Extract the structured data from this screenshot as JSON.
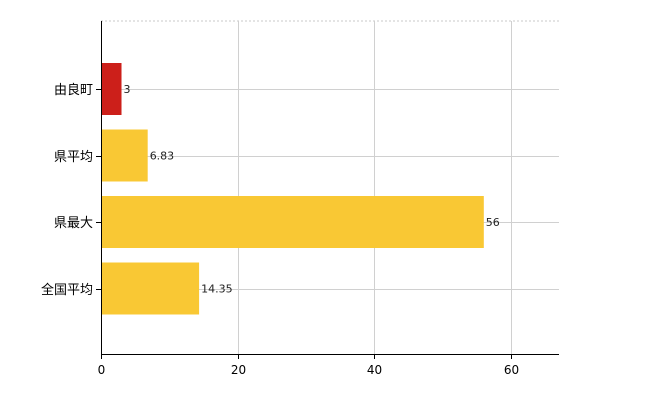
{
  "chart_data": {
    "type": "bar",
    "orientation": "horizontal",
    "categories": [
      "由良町",
      "県平均",
      "県最大",
      "全国平均"
    ],
    "values": [
      3,
      6.83,
      56,
      14.35
    ],
    "value_labels": [
      "3",
      "6.83",
      "56",
      "14.35"
    ],
    "bar_colors": [
      "#cc1f1a",
      "#f9c834",
      "#f9c834",
      "#f9c834"
    ],
    "xlim": [
      0,
      67
    ],
    "xticks": [
      0,
      20,
      40,
      60
    ],
    "xtick_labels": [
      "0",
      "20",
      "40",
      "60"
    ],
    "grid": true,
    "legend": "none"
  }
}
